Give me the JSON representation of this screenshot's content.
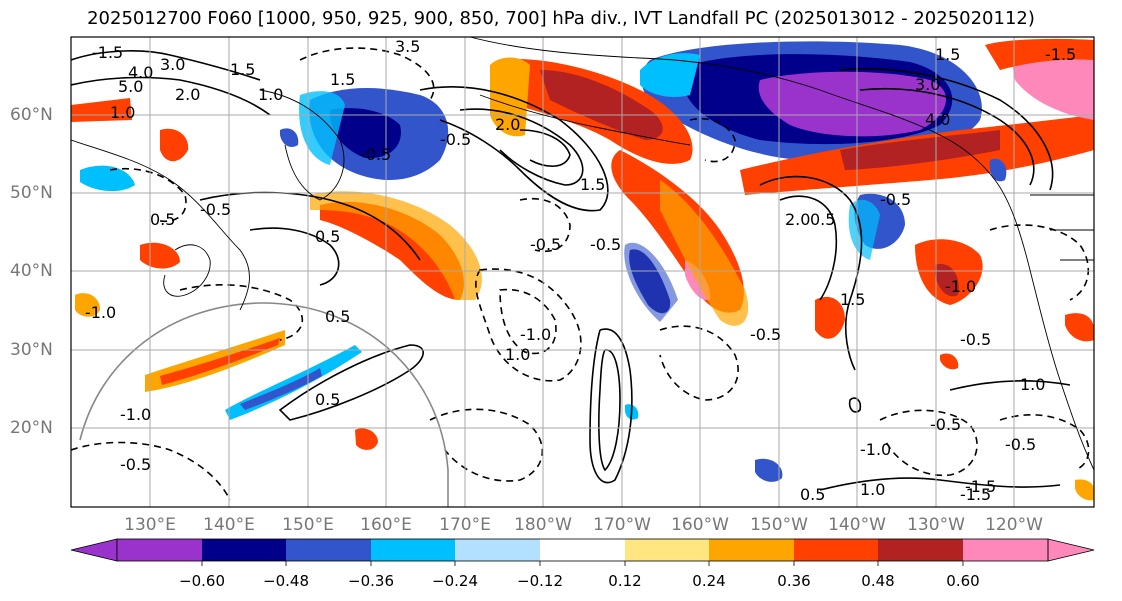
{
  "title": "2025012700 F060 [1000, 950, 925, 900, 850, 700] hPa div., IVT Landfall PC (2025013012 - 2025020112)",
  "lat_labels": [
    "60°N",
    "50°N",
    "40°N",
    "30°N",
    "20°N"
  ],
  "lon_labels": [
    "130°E",
    "140°E",
    "150°E",
    "160°E",
    "170°E",
    "180°W",
    "170°W",
    "160°W",
    "150°W",
    "140°W",
    "130°W",
    "120°W"
  ],
  "colorbar": {
    "ticks": [
      "−0.60",
      "−0.48",
      "−0.36",
      "−0.24",
      "−0.12",
      "0.12",
      "0.24",
      "0.36",
      "0.48",
      "0.60"
    ],
    "colors": [
      "#9933cc",
      "#00008b",
      "#3355cc",
      "#00bfff",
      "#b3e0ff",
      "#ffffff",
      "#ffe680",
      "#ffa500",
      "#ff4000",
      "#b22222",
      "#ff88bb"
    ]
  },
  "contour_labels": [
    "3.0",
    "4.0",
    "5.0",
    "2.0",
    "1.0",
    "1.5",
    "-1.5",
    "-0.5",
    "0.5",
    "-1.0",
    "3.5",
    "1.5",
    "-0.5",
    "-0.5",
    "0.5",
    "-1.0",
    "2.0",
    "1.0",
    "-0.5",
    "1.5",
    "-0.5",
    "-0.5",
    "0.5",
    "-0.5",
    "0.5",
    "-0.5",
    "-1.0",
    "1.0",
    "-1.5",
    "1.5",
    "4.0",
    "3.0",
    "2.0",
    "1.5",
    "-1.5",
    "0.5",
    "-0.5",
    "-0.5",
    "0.5",
    "-1.0",
    "1.0",
    "-1.0",
    "1.0",
    "-1.5",
    "-0.5"
  ]
}
